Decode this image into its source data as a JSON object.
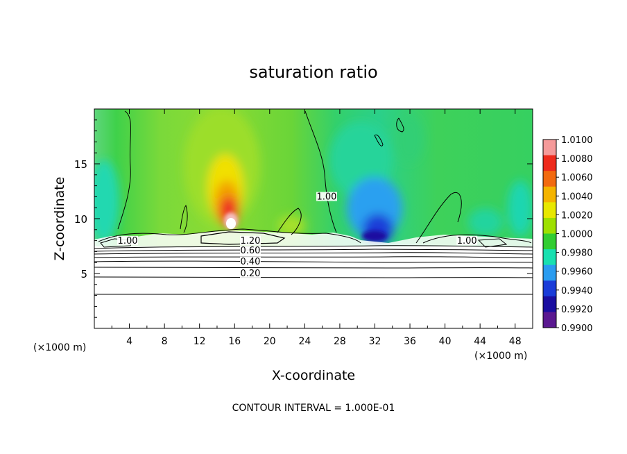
{
  "chart_data": {
    "type": "heatmap",
    "title": "saturation ratio",
    "xlabel": "X-coordinate",
    "ylabel": "Z-coordinate",
    "x_unit_left": "(×1000 m)",
    "x_unit_right": "(×1000 m)",
    "x_ticks": [
      4,
      8,
      12,
      16,
      20,
      24,
      28,
      32,
      36,
      40,
      44,
      48
    ],
    "y_ticks": [
      5,
      10,
      15
    ],
    "xlim": [
      0,
      50
    ],
    "ylim": [
      0,
      20
    ],
    "footer": "CONTOUR INTERVAL = 1.000E-01",
    "colorbar": {
      "labels": [
        "1.0100",
        "1.0080",
        "1.0060",
        "1.0040",
        "1.0020",
        "1.0000",
        "0.9980",
        "0.9960",
        "0.9940",
        "0.9920",
        "0.9900"
      ],
      "colors": [
        "#f59a9a",
        "#ee2a1c",
        "#f26a10",
        "#f4b400",
        "#e8e800",
        "#9ee000",
        "#32cd32",
        "#19e0b0",
        "#2a9cf0",
        "#1a3cd8",
        "#1a0ea0",
        "#5a1890"
      ]
    },
    "contour_labels": [
      {
        "text": "1.00",
        "x": 26.5,
        "y": 11.8
      },
      {
        "text": "1.00",
        "x": 3.8,
        "y": 7.8
      },
      {
        "text": "1.00",
        "x": 42.5,
        "y": 7.8
      },
      {
        "text": "1.20",
        "x": 17.8,
        "y": 7.8
      },
      {
        "text": "0.60",
        "x": 17.8,
        "y": 6.9
      },
      {
        "text": "0.40",
        "x": 17.8,
        "y": 5.9
      },
      {
        "text": "0.20",
        "x": 17.8,
        "y": 4.8
      }
    ]
  }
}
